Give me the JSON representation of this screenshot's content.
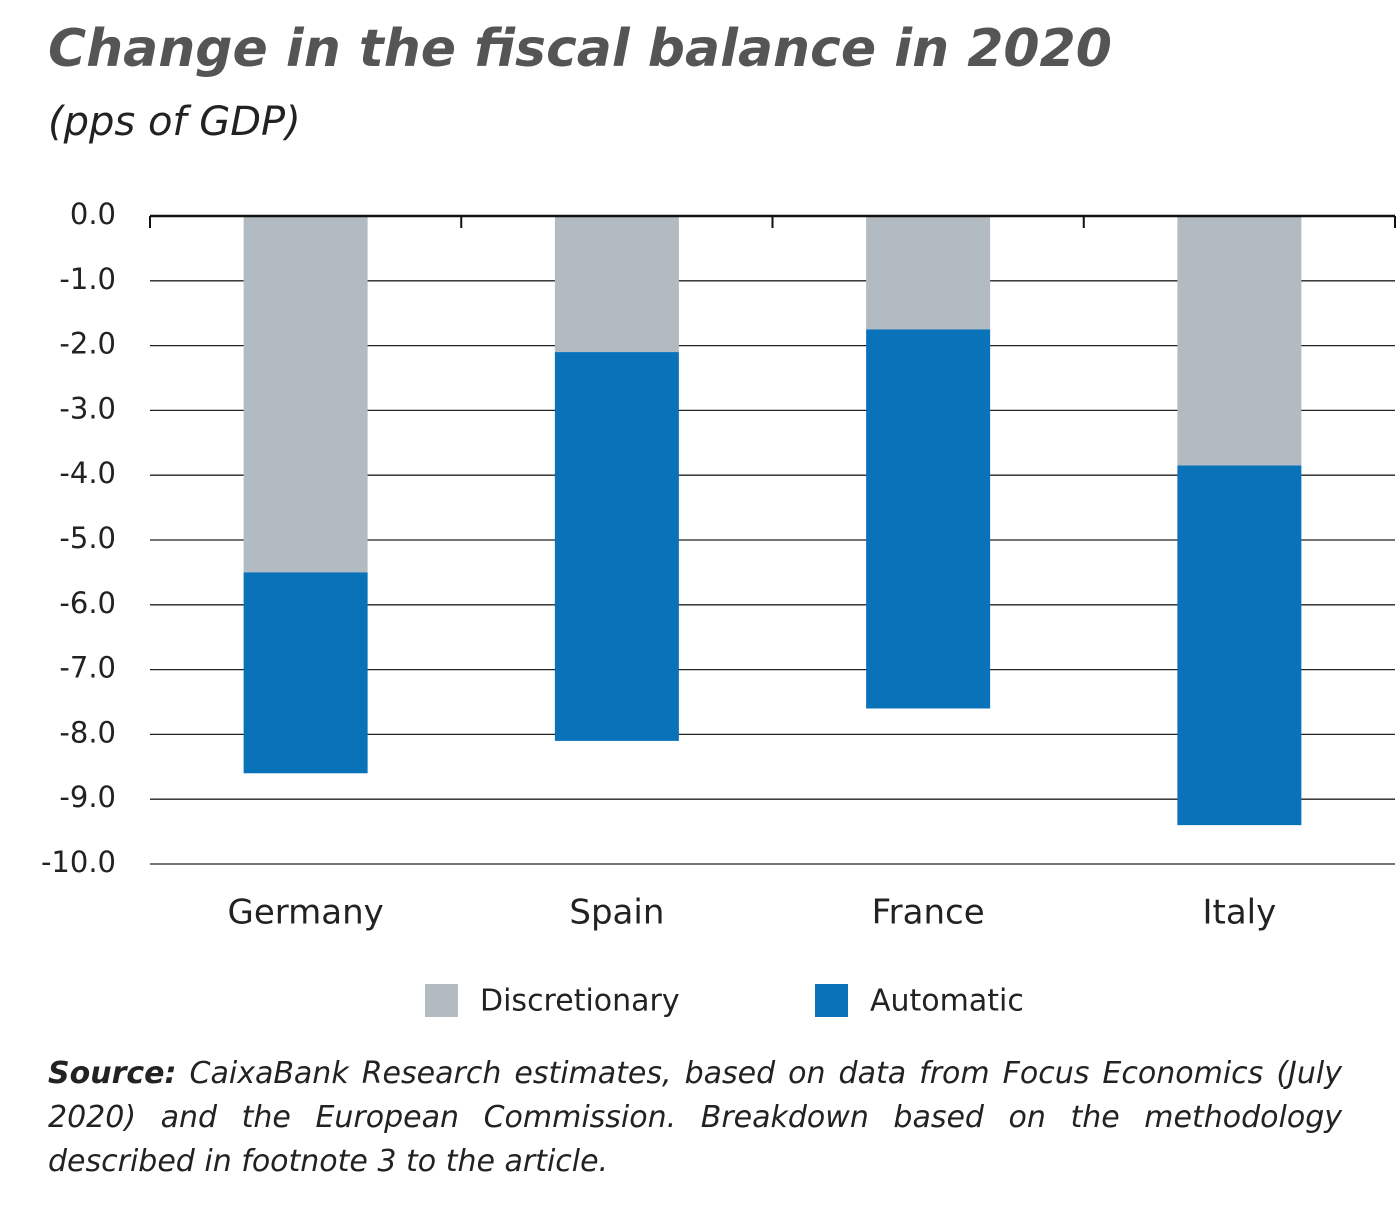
{
  "chart_data": {
    "type": "stacked-bar",
    "title": "Change in the fiscal balance in 2020",
    "subtitle": "(pps of GDP)",
    "categories": [
      "Germany",
      "Spain",
      "France",
      "Italy"
    ],
    "series": [
      {
        "name": "Discretionary",
        "color": "#b1bbc1",
        "values": [
          -5.5,
          -2.1,
          -1.75,
          -3.85
        ]
      },
      {
        "name": "Automatic",
        "color": "#0972b9",
        "values": [
          -3.1,
          -6.0,
          -5.85,
          -5.55
        ]
      }
    ],
    "ylim": [
      -10,
      0
    ],
    "yticks": [
      {
        "value": 0,
        "label": "0.0"
      },
      {
        "value": -1,
        "label": "-1.0"
      },
      {
        "value": -2,
        "label": "-2.0"
      },
      {
        "value": -3,
        "label": "-3.0"
      },
      {
        "value": -4,
        "label": "-4.0"
      },
      {
        "value": -5,
        "label": "-5.0"
      },
      {
        "value": -6,
        "label": "-6.0"
      },
      {
        "value": -7,
        "label": "-7.0"
      },
      {
        "value": -8,
        "label": "-8.0"
      },
      {
        "value": -9,
        "label": "-9.0"
      },
      {
        "value": -10,
        "label": "-10.0"
      }
    ],
    "grid": true,
    "source_label": "Source:",
    "source_text": "CaixaBank Research estimates, based on data from Focus Economics (July 2020) and the European Commission. Breakdown based on the methodology described in footnote 3 to the article."
  }
}
